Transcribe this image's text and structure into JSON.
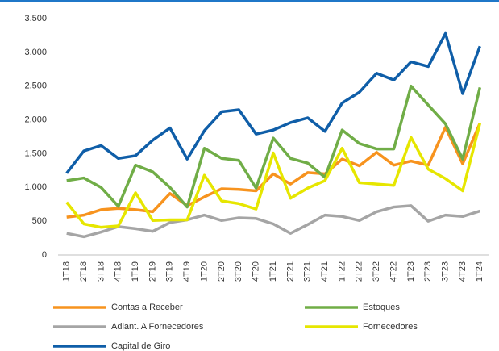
{
  "chart_data": {
    "type": "line",
    "categories": [
      "1T18",
      "2T18",
      "3T18",
      "4T18",
      "1T19",
      "2T19",
      "3T19",
      "4T19",
      "1T20",
      "2T20",
      "3T20",
      "4T20",
      "1T21",
      "2T21",
      "3T21",
      "4T21",
      "1T22",
      "2T22",
      "3T22",
      "4T22",
      "1T23",
      "2T23",
      "3T23",
      "4T23",
      "1T24"
    ],
    "series": [
      {
        "name": "Contas a Receber",
        "color": "#f7931e",
        "values": [
          560,
          590,
          670,
          690,
          670,
          640,
          910,
          730,
          860,
          980,
          970,
          950,
          1200,
          1050,
          1220,
          1200,
          1420,
          1320,
          1520,
          1330,
          1390,
          1330,
          1890,
          1350,
          1950
        ]
      },
      {
        "name": "Estoques",
        "color": "#70ad47",
        "values": [
          1100,
          1140,
          1000,
          720,
          1330,
          1230,
          1000,
          710,
          1580,
          1430,
          1400,
          990,
          1730,
          1430,
          1360,
          1150,
          1850,
          1650,
          1570,
          1570,
          2500,
          2220,
          1940,
          1420,
          2480
        ]
      },
      {
        "name": "Adiant. A Fornecedores",
        "color": "#a5a5a5",
        "values": [
          320,
          270,
          340,
          420,
          390,
          350,
          480,
          520,
          590,
          510,
          550,
          540,
          460,
          320,
          450,
          590,
          570,
          510,
          640,
          710,
          730,
          500,
          590,
          570,
          650
        ]
      },
      {
        "name": "Fornecedores",
        "color": "#e6e600",
        "values": [
          780,
          460,
          410,
          430,
          920,
          510,
          520,
          520,
          1180,
          800,
          760,
          680,
          1510,
          840,
          990,
          1100,
          1580,
          1070,
          1050,
          1030,
          1740,
          1270,
          1130,
          950,
          1950
        ]
      },
      {
        "name": "Capital de Giro",
        "color": "#0f5ea8",
        "values": [
          1210,
          1540,
          1620,
          1430,
          1470,
          1700,
          1880,
          1420,
          1840,
          2120,
          2150,
          1790,
          1850,
          1960,
          2030,
          1830,
          2250,
          2410,
          2690,
          2590,
          2860,
          2790,
          3280,
          2390,
          3090
        ]
      }
    ],
    "ylim": [
      0,
      3500
    ],
    "yticks": [
      0,
      500,
      {
        "value": 1000,
        "label": "1.000"
      },
      {
        "value": 1500,
        "label": "1.500"
      },
      {
        "value": 2000,
        "label": "2.000"
      },
      {
        "value": 2500,
        "label": "2.500"
      },
      {
        "value": 3000,
        "label": "3.000"
      },
      {
        "value": 3500,
        "label": "3.500"
      }
    ],
    "grid": false,
    "legend": "bottom"
  }
}
